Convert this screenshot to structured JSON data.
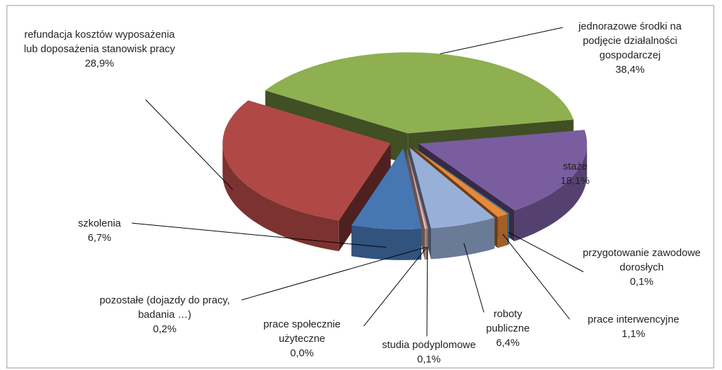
{
  "chart_data": {
    "type": "pie",
    "categories": [
      "jednorazowe środki na podjęcie działalności gospodarczej",
      "staże",
      "przygotowanie zawodowe dorosłych",
      "prace interwencyjne",
      "roboty publiczne",
      "studia podyplomowe",
      "prace społecznie użyteczne",
      "pozostałe (dojazdy do pracy, badania …)",
      "szkolenia",
      "refundacja kosztów wyposażenia lub doposażenia stanowisk pracy"
    ],
    "values": [
      38.4,
      18.1,
      0.1,
      1.1,
      6.4,
      0.1,
      0.0,
      0.2,
      6.7,
      28.9
    ],
    "value_labels": [
      "38,4%",
      "18,1%",
      "0,1%",
      "1,1%",
      "6,4%",
      "0,1%",
      "0,0%",
      "0,2%",
      "6,7%",
      "28,9%"
    ],
    "colors": [
      "#8eb050",
      "#7a5d9e",
      "#4bacc6",
      "#e8893a",
      "#98b0d8",
      "#d99694",
      "#9bbb59",
      "#e6b9b8",
      "#4677b3",
      "#b04846"
    ]
  }
}
